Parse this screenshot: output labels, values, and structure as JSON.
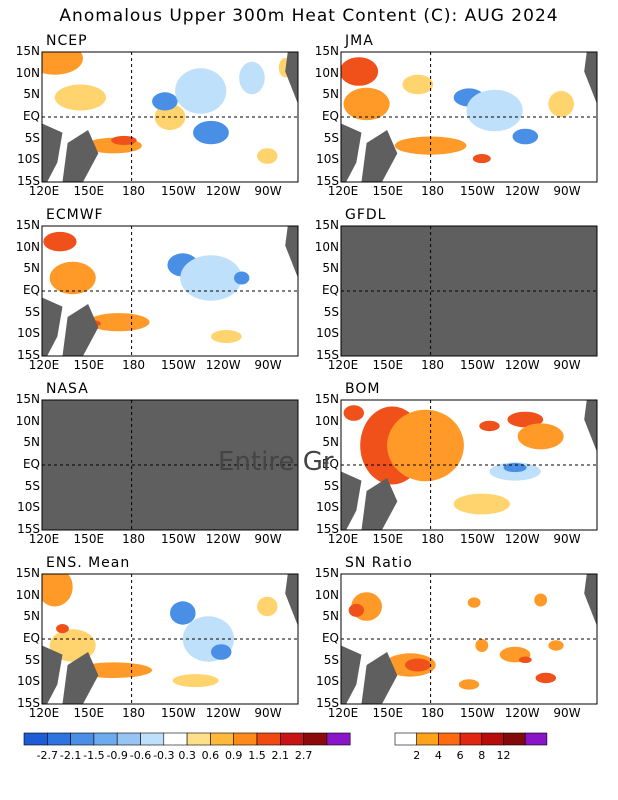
{
  "title": "Anomalous Upper 300m Heat Content (C): AUG 2024",
  "panels": [
    {
      "name": "NCEP",
      "status": "data"
    },
    {
      "name": "JMA",
      "status": "data"
    },
    {
      "name": "ECMWF",
      "status": "data"
    },
    {
      "name": "GFDL",
      "status": "no-data"
    },
    {
      "name": "NASA",
      "status": "no-data"
    },
    {
      "name": "BOM",
      "status": "data"
    },
    {
      "name": "ENS. Mean",
      "status": "data"
    },
    {
      "name": "SN Ratio",
      "status": "data"
    }
  ],
  "lat_labels": [
    "15N",
    "10N",
    "5N",
    "EQ",
    "5S",
    "10S",
    "15S"
  ],
  "lon_labels": [
    "120E",
    "150E",
    "180",
    "150W",
    "120W",
    "90W"
  ],
  "overlay_text": "Entire Gr",
  "colorbar_anomaly": {
    "labels": [
      "-2.7",
      "-2.1",
      "-1.5",
      "-0.9",
      "-0.6",
      "-0.3",
      "0.3",
      "0.6",
      "0.9",
      "1.5",
      "2.1",
      "2.7"
    ],
    "colors": [
      "#1e5bd6",
      "#2e74e0",
      "#4a8fe6",
      "#6eaaee",
      "#96c5f4",
      "#bfe0fa",
      "#ffffff",
      "#ffe08a",
      "#ffb83a",
      "#ff8a1a",
      "#f04a10",
      "#c81414",
      "#8c0a0a",
      "#8a14c8"
    ]
  },
  "colorbar_snratio": {
    "labels": [
      "2",
      "4",
      "6",
      "8",
      "12"
    ],
    "colors": [
      "#ffffff",
      "#ffa31a",
      "#ff6a10",
      "#e02810",
      "#b80c0c",
      "#820a0a",
      "#8a14c8"
    ]
  },
  "colors": {
    "land": "#5f5f5f",
    "no_data": "#5f5f5f",
    "orange": "#ff9a28",
    "red": "#f0501a",
    "yellow": "#ffd36e",
    "blue": "#4a8fe6",
    "light_blue": "#bfe0fa"
  }
}
